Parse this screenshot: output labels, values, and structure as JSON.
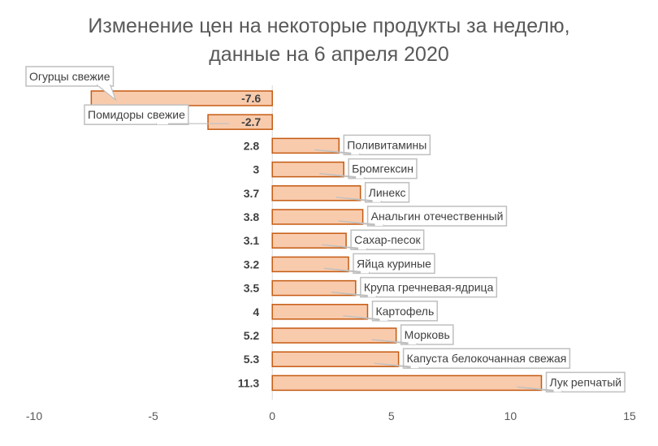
{
  "chart_data": {
    "type": "bar",
    "orientation": "horizontal",
    "title_line1": "Изменение цен на некоторые продукты за неделю,",
    "title_line2": "данные на 6 апреля 2020",
    "categories": [
      "Огурцы свежие",
      "Помидоры свежие",
      "Поливитамины",
      "Бромгексин",
      "Линекс",
      "Анальгин отечественный",
      "Сахар-песок",
      "Яйца куриные",
      "Крупа гречневая-ядрица",
      "Картофель",
      "Морковь",
      "Капуста белокочанная свежая",
      "Лук репчатый"
    ],
    "values": [
      -7.6,
      -2.7,
      2.8,
      3,
      3.7,
      3.8,
      3.1,
      3.2,
      3.5,
      4,
      5.2,
      5.3,
      11.3
    ],
    "value_labels": [
      "-7.6",
      "-2.7",
      "2.8",
      "3",
      "3.7",
      "3.8",
      "3.1",
      "3.2",
      "3.5",
      "4",
      "5.2",
      "5.3",
      "11.3"
    ],
    "xlim": [
      -10,
      15
    ],
    "xticks": [
      -10,
      -5,
      0,
      5,
      10,
      15
    ],
    "grid": false,
    "legend": "none",
    "colors": {
      "bar_fill": "#f8cbad",
      "bar_stroke": "#c55a11",
      "axis": "#d9d9d9",
      "callout_border": "#bfbfbf",
      "title": "#595959"
    }
  }
}
